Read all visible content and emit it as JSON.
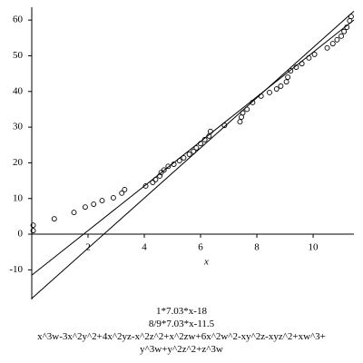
{
  "chart_data": {
    "type": "scatter",
    "x_label": "x",
    "xlim": [
      0,
      11.45
    ],
    "ylim": [
      -18.3,
      63.6
    ],
    "xticks": [
      2,
      4,
      6,
      8,
      10
    ],
    "yticks": [
      -10,
      0,
      10,
      20,
      30,
      40,
      50,
      60
    ],
    "lines": [
      {
        "name": "1*7.03*x-18",
        "color": "#000000",
        "x": [
          0,
          11.45
        ],
        "values": [
          -18,
          62.5
        ]
      },
      {
        "name": "8/9*7.03*x-11.5",
        "color": "#000000",
        "x": [
          0,
          11.45
        ],
        "values": [
          -11.5,
          60.05
        ]
      }
    ],
    "series": [
      {
        "name": "x^3w-3x^2y^2+4x^2yz-x^2z^2+x^2zw+6x^2w^2-xy^2z-xyz^2+xw^3+\ny^3w+y^2z^2+z^3w",
        "color": "#000000",
        "x": [
          0.05,
          0.05,
          0.8,
          1.5,
          1.9,
          2.2,
          2.5,
          2.9,
          3.2,
          3.3,
          4.05,
          4.3,
          4.4,
          4.55,
          4.6,
          4.7,
          4.85,
          5.05,
          5.25,
          5.4,
          5.6,
          5.75,
          5.85,
          6.0,
          6.15,
          6.3,
          6.35,
          6.85,
          7.4,
          7.45,
          7.5,
          7.65,
          7.85,
          8.15,
          8.45,
          8.7,
          8.85,
          9.05,
          9.1,
          9.2,
          9.4,
          9.6,
          9.85,
          10.05,
          10.5,
          10.7,
          10.85,
          11.0,
          11.1,
          11.2,
          11.3,
          11.35
        ],
        "values": [
          2.5,
          1,
          4.3,
          6.1,
          7.6,
          8.4,
          9.4,
          10.2,
          11.5,
          12.5,
          13.5,
          14.5,
          15.3,
          16.3,
          17.3,
          18,
          19,
          19.6,
          20.6,
          21.4,
          22.4,
          23.2,
          24.2,
          25.4,
          26.5,
          27.5,
          28.8,
          30.5,
          31.5,
          32.8,
          34,
          35,
          36.9,
          38.7,
          39.7,
          40.7,
          41.5,
          42.7,
          44,
          45.8,
          46.8,
          47.8,
          49.4,
          50.4,
          52.2,
          53.4,
          54.5,
          55.5,
          56.8,
          58,
          59.8,
          61
        ]
      }
    ]
  }
}
